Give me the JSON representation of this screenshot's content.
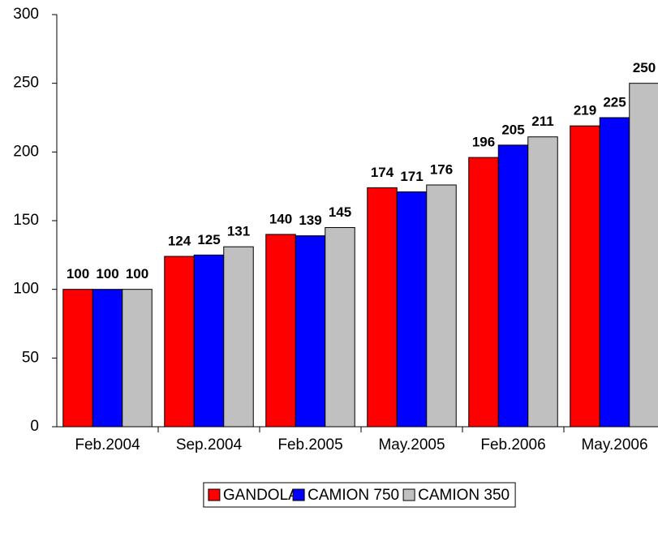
{
  "chart_data": {
    "type": "bar",
    "categories": [
      "Feb.2004",
      "Sep.2004",
      "Feb.2005",
      "May.2005",
      "Feb.2006",
      "May.2006"
    ],
    "series": [
      {
        "name": "GANDOLA",
        "color": "#ff0000",
        "values": [
          100,
          124,
          140,
          174,
          196,
          219
        ]
      },
      {
        "name": "CAMION 750",
        "color": "#0000ff",
        "values": [
          100,
          125,
          139,
          171,
          205,
          225
        ]
      },
      {
        "name": "CAMION 350",
        "color": "#c0c0c0",
        "values": [
          100,
          131,
          145,
          176,
          211,
          250
        ]
      }
    ],
    "ylim": [
      0,
      300
    ],
    "yticks": [
      0,
      50,
      100,
      150,
      200,
      250,
      300
    ],
    "grid": false,
    "legend": "bottom"
  }
}
